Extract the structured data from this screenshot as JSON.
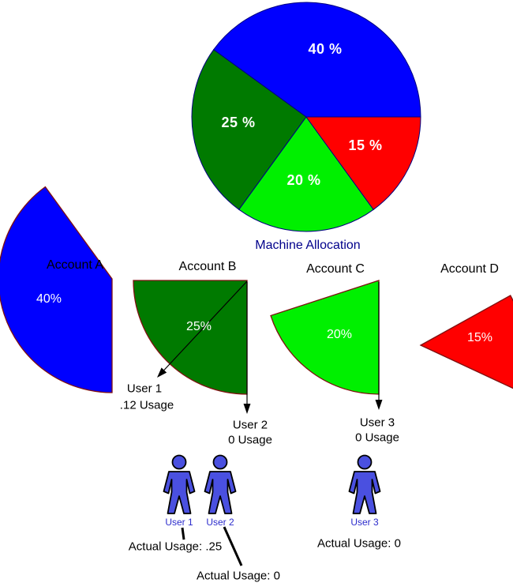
{
  "chart_data": {
    "type": "pie",
    "title": "Machine Allocation",
    "categories": [
      "Account A",
      "Account B",
      "Account C",
      "Account D"
    ],
    "values": [
      40,
      25,
      20,
      15
    ],
    "colors": [
      "#0000ff",
      "#007a00",
      "#00f000",
      "#ff0000"
    ],
    "pie_stroke": "#000080",
    "wedge_stroke": "#7f1010",
    "slice_labels": [
      "40 %",
      "25 %",
      "20 %",
      "15 %"
    ],
    "wedge_labels": [
      "40%",
      "25%",
      "20%",
      "15%"
    ],
    "legend": "none"
  },
  "users": [
    {
      "name": "User 1",
      "callout_usage": ".12 Usage",
      "actual_usage": "Actual Usage: .25"
    },
    {
      "name": "User 2",
      "callout_usage": "0 Usage",
      "actual_usage": "Actual Usage: 0"
    },
    {
      "name": "User 3",
      "callout_usage": "0 Usage",
      "actual_usage": "Actual Usage: 0"
    }
  ],
  "colors": {
    "person_fill": "#4a50e0",
    "figure_label_text": "#2b2bcc",
    "title_text": "#00008b",
    "arrow": "#000000"
  }
}
